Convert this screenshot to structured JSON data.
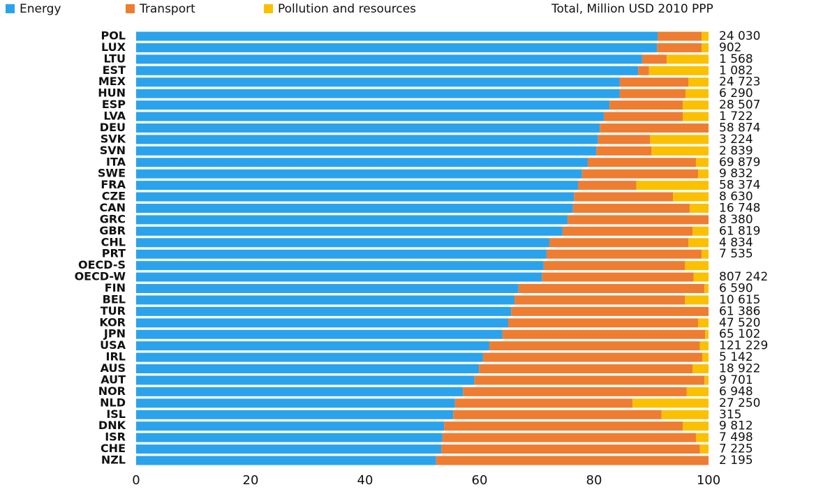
{
  "chart_data": {
    "type": "stacked-bar-horizontal",
    "categories": [
      "POL",
      "LUX",
      "LTU",
      "EST",
      "MEX",
      "HUN",
      "ESP",
      "LVA",
      "DEU",
      "SVK",
      "SVN",
      "ITA",
      "SWE",
      "FRA",
      "CZE",
      "CAN",
      "GRC",
      "GBR",
      "CHL",
      "PRT",
      "OECD-S",
      "OECD-W",
      "FIN",
      "BEL",
      "TUR",
      "KOR",
      "JPN",
      "USA",
      "IRL",
      "AUS",
      "AUT",
      "NOR",
      "NLD",
      "ISL",
      "DNK",
      "ISR",
      "CHE",
      "NZL"
    ],
    "series": [
      {
        "name": "Energy",
        "color": "#2aa3ec",
        "values": [
          91.1,
          91.0,
          88.4,
          87.7,
          84.5,
          84.5,
          82.7,
          81.7,
          81.0,
          80.7,
          80.4,
          78.9,
          77.9,
          77.2,
          76.5,
          76.3,
          75.4,
          74.5,
          72.2,
          71.7,
          71.2,
          70.9,
          66.8,
          66.1,
          65.5,
          65.0,
          64.0,
          61.7,
          60.6,
          59.9,
          59.1,
          57.1,
          55.7,
          55.4,
          53.8,
          53.5,
          53.3,
          52.4
        ]
      },
      {
        "name": "Transport",
        "color": "#ee7d31",
        "values": [
          7.7,
          7.8,
          4.3,
          1.9,
          12.0,
          11.5,
          12.8,
          13.8,
          19.0,
          9.1,
          9.6,
          18.9,
          20.3,
          10.2,
          17.3,
          20.4,
          24.6,
          22.7,
          24.3,
          27.1,
          24.7,
          26.5,
          32.5,
          29.8,
          34.5,
          33.2,
          35.4,
          36.8,
          38.3,
          37.3,
          40.2,
          39.1,
          31.0,
          36.4,
          41.7,
          44.3,
          45.2,
          47.6
        ]
      },
      {
        "name": "Pollution and resources",
        "color": "#fbc000",
        "values": [
          1.2,
          1.2,
          7.3,
          10.4,
          3.5,
          4.0,
          4.5,
          4.5,
          0,
          10.2,
          10.0,
          2.2,
          1.8,
          12.6,
          6.2,
          3.3,
          0,
          2.8,
          3.5,
          1.2,
          4.1,
          2.6,
          0.7,
          4.1,
          0,
          1.8,
          0.6,
          1.5,
          1.1,
          2.8,
          0.7,
          3.8,
          13.3,
          8.2,
          4.5,
          2.2,
          1.5,
          0
        ]
      }
    ],
    "totals": {
      "title": "Total, Million USD 2010 PPP",
      "values": [
        24030,
        902,
        1568,
        1082,
        24723,
        6290,
        28507,
        1722,
        58874,
        3224,
        2839,
        69879,
        9832,
        58374,
        8630,
        16748,
        8380,
        61819,
        4834,
        7535,
        null,
        807242,
        6590,
        10615,
        61386,
        47520,
        65102,
        121229,
        5142,
        18922,
        9701,
        6948,
        27250,
        315,
        9812,
        7498,
        7225,
        2195
      ],
      "value_labels": [
        "24 030",
        "902",
        "1 568",
        "1 082",
        "24 723",
        "6 290",
        "28 507",
        "1 722",
        "58 874",
        "3 224",
        "2 839",
        "69 879",
        "9 832",
        "58 374",
        "8 630",
        "16 748",
        "8 380",
        "61 819",
        "4 834",
        "7 535",
        null,
        "807 242",
        "6 590",
        "10 615",
        "61 386",
        "47 520",
        "65 102",
        "121 229",
        "5 142",
        "18 922",
        "9 701",
        "6 948",
        "27 250",
        "315",
        "9 812",
        "7 498",
        "7 225",
        "2 195"
      ]
    },
    "xlim": [
      0,
      100
    ],
    "xticks": [
      0,
      20,
      40,
      60,
      80,
      100
    ]
  }
}
